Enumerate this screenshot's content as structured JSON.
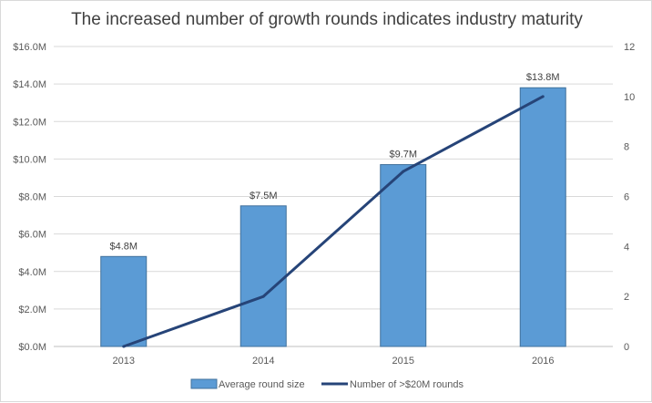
{
  "chart_data": {
    "type": "bar",
    "title": "The increased number of growth rounds indicates industry maturity",
    "categories": [
      "2013",
      "2014",
      "2015",
      "2016"
    ],
    "series": [
      {
        "name": "Average round size",
        "type": "bar",
        "axis": "left",
        "values": [
          4.8,
          7.5,
          9.7,
          13.8
        ],
        "data_labels": [
          "$4.8M",
          "$7.5M",
          "$9.7M",
          "$13.8M"
        ],
        "color": "#5b9bd5"
      },
      {
        "name": "Number of >$20M rounds",
        "type": "line",
        "axis": "right",
        "values": [
          0,
          2,
          7,
          10
        ],
        "color": "#264478"
      }
    ],
    "y_left": {
      "ylim": [
        0,
        16
      ],
      "ticks": [
        0,
        2,
        4,
        6,
        8,
        10,
        12,
        14,
        16
      ],
      "tick_labels": [
        "$0.0M",
        "$2.0M",
        "$4.0M",
        "$6.0M",
        "$8.0M",
        "$10.0M",
        "$12.0M",
        "$14.0M",
        "$16.0M"
      ]
    },
    "y_right": {
      "ylim": [
        0,
        12
      ],
      "ticks": [
        0,
        2,
        4,
        6,
        8,
        10,
        12
      ],
      "tick_labels": [
        "0",
        "2",
        "4",
        "6",
        "8",
        "10",
        "12"
      ]
    },
    "grid": true,
    "legend": "bottom"
  }
}
